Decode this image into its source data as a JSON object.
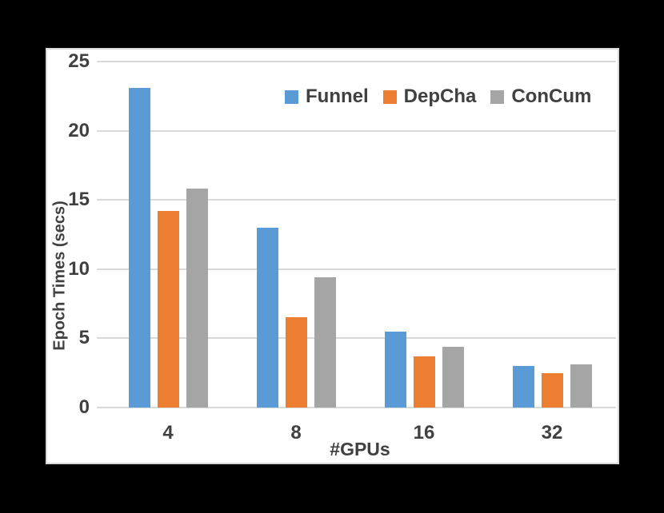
{
  "styles": {
    "canvas_background": "#000000",
    "panel_background": "#ffffff",
    "panel_border": "#d9d9d9",
    "gridline_color": "#d9d9d9",
    "text_color": "#404040"
  },
  "chart_data": {
    "type": "bar",
    "categories": [
      "4",
      "8",
      "16",
      "32"
    ],
    "series": [
      {
        "name": "Funnel",
        "color": "#5B9BD5",
        "values": [
          23.1,
          13.0,
          5.5,
          3.0
        ]
      },
      {
        "name": "DepCha",
        "color": "#ED7D31",
        "values": [
          14.2,
          6.5,
          3.7,
          2.5
        ]
      },
      {
        "name": "ConCum",
        "color": "#A5A5A5",
        "values": [
          15.8,
          9.4,
          4.4,
          3.1
        ]
      }
    ],
    "xlabel": "#GPUs",
    "ylabel": "Epoch Times (secs)",
    "ylim": [
      0,
      25
    ],
    "yticks": [
      0,
      5,
      10,
      15,
      20,
      25
    ],
    "grid": true,
    "legend_position": "top-inside-right"
  }
}
